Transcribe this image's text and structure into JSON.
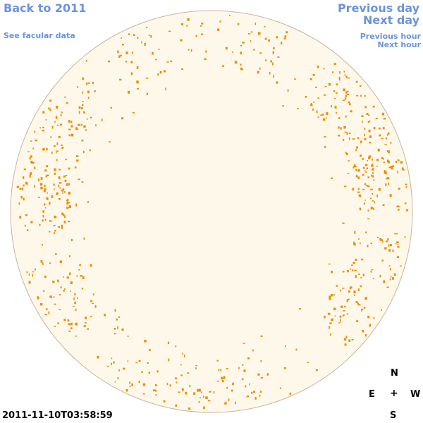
{
  "navigation": {
    "back_label": "Back to 2011",
    "facular_label": "See facular data",
    "previous_day_label": "Previous day",
    "next_day_label": "Next day",
    "previous_hour_label": "Previous hour",
    "next_hour_label": "Next hour"
  },
  "compass": {
    "north": "N",
    "east": "E",
    "center": "+",
    "west": "W",
    "south": "S"
  },
  "timestamp": "2011-11-10T03:58:59",
  "colors": {
    "link": "#6b93dc",
    "disk_fill": "#fef8eb",
    "disk_edge": "#c8b49a",
    "feature": "#f08c00"
  }
}
